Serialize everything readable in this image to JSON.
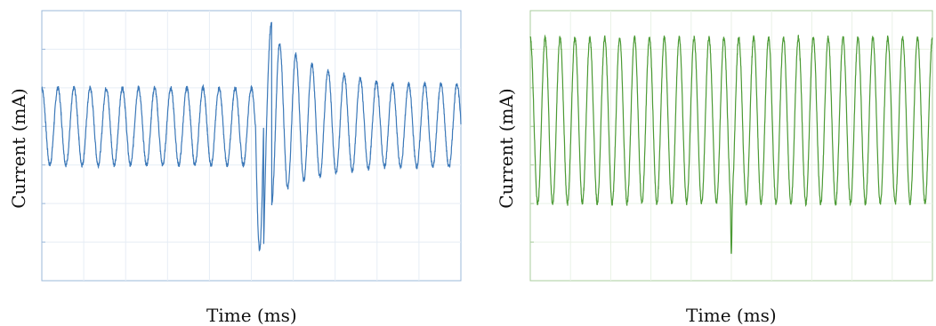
{
  "chart_data": [
    {
      "type": "line",
      "xlabel": "Time (ms)",
      "ylabel": "Current (mA)",
      "grid": true,
      "ylim": [
        0,
        7
      ],
      "xlim": [
        0,
        10
      ],
      "color": "#3b78b8",
      "axis_color": "#9bb8da",
      "grid_color": "#e6edf5",
      "series": [
        {
          "cycles_per_unit_x": 2.6,
          "peak_level": 5.0,
          "trough_level": 3.0,
          "event": {
            "x": 5.1,
            "min_value": 0.8,
            "max_value": 6.7,
            "decay_peaks": [
              6.7,
              6.3,
              6.0,
              5.7,
              5.5,
              5.4,
              5.3,
              5.2,
              5.1
            ],
            "decay_troughs": [
              1.2,
              2.0,
              2.4,
              2.6,
              2.7,
              2.8,
              2.85,
              2.9,
              2.95
            ]
          }
        }
      ]
    },
    {
      "type": "line",
      "xlabel": "Time (ms)",
      "ylabel": "Current (mA)",
      "grid": true,
      "ylim": [
        0,
        7
      ],
      "xlim": [
        0,
        10
      ],
      "color": "#4b9a34",
      "axis_color": "#a9cc9d",
      "grid_color": "#e9f2e6",
      "series": [
        {
          "cycles_per_unit_x": 2.7,
          "peak_level": 6.3,
          "trough_level": 2.0,
          "event": {
            "x": 5.0,
            "min_value": 0.7
          }
        }
      ]
    }
  ]
}
